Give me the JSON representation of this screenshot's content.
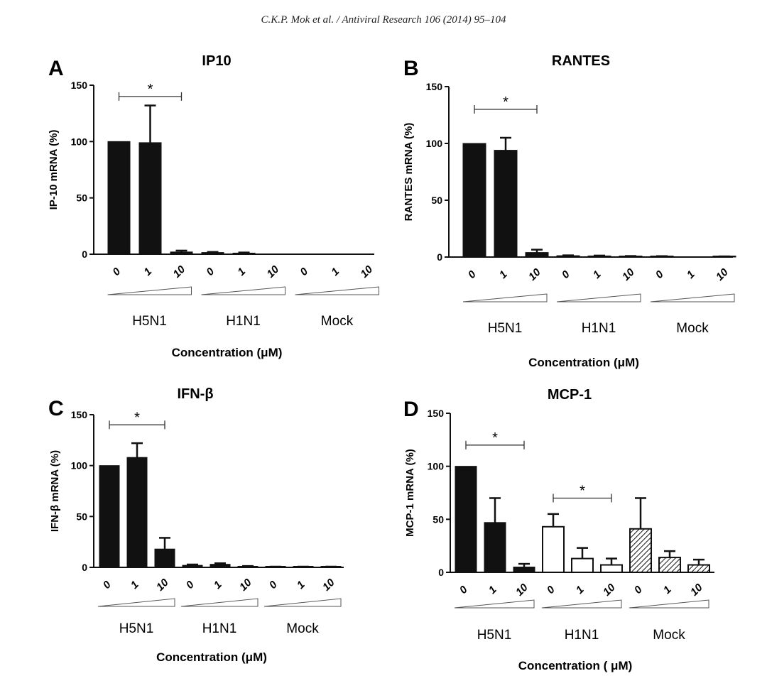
{
  "header": "C.K.P. Mok et al. / Antiviral Research 106 (2014) 95–104",
  "chart_data": [
    {
      "type": "bar",
      "letter": "A",
      "title": "IP10",
      "ylabel": "IP-10 mRNA (%)",
      "xlabel": "Concentration (μM)",
      "ylim": [
        0,
        150
      ],
      "yticks": [
        0,
        50,
        100,
        150
      ],
      "categories": [
        "0",
        "1",
        "10",
        "0",
        "1",
        "10",
        "0",
        "1",
        "10"
      ],
      "groups": [
        "H5N1",
        "H1N1",
        "Mock"
      ],
      "values": [
        100,
        99,
        2,
        1.5,
        1,
        0,
        0,
        0,
        0
      ],
      "errors": [
        0,
        33,
        1.2,
        0.5,
        0.5,
        0,
        0,
        0,
        0
      ],
      "fills": [
        "solid",
        "solid",
        "solid",
        "solid",
        "solid",
        "solid",
        "solid",
        "solid",
        "solid"
      ],
      "significance": [
        {
          "from": 0,
          "to": 2,
          "label": "*"
        }
      ]
    },
    {
      "type": "bar",
      "letter": "B",
      "title": "RANTES",
      "ylabel": "RANTES mRNA (%)",
      "xlabel": "Concentration (μM)",
      "ylim": [
        0,
        150
      ],
      "yticks": [
        0,
        50,
        100,
        150
      ],
      "categories": [
        "0",
        "1",
        "10",
        "0",
        "1",
        "10",
        "0",
        "1",
        "10"
      ],
      "groups": [
        "H5N1",
        "H1N1",
        "Mock"
      ],
      "values": [
        100,
        94,
        4,
        1.2,
        1,
        0.6,
        0.5,
        0,
        0.3
      ],
      "errors": [
        0,
        11,
        2.5,
        0.3,
        0.3,
        0.3,
        0.3,
        0,
        0.3
      ],
      "fills": [
        "solid",
        "solid",
        "solid",
        "solid",
        "solid",
        "solid",
        "solid",
        "solid",
        "solid"
      ],
      "significance": [
        {
          "from": 0,
          "to": 2,
          "label": "*"
        }
      ]
    },
    {
      "type": "bar",
      "letter": "C",
      "title": "IFN-β",
      "ylabel": "IFN-β mRNA (%)",
      "xlabel": "Concentration (μM)",
      "ylim": [
        0,
        150
      ],
      "yticks": [
        0,
        50,
        100,
        150
      ],
      "categories": [
        "0",
        "1",
        "10",
        "0",
        "1",
        "10",
        "0",
        "1",
        "10"
      ],
      "groups": [
        "H5N1",
        "H1N1",
        "Mock"
      ],
      "values": [
        100,
        108,
        18,
        2,
        3,
        1,
        0.5,
        0.5,
        0.5
      ],
      "errors": [
        0,
        14,
        11,
        0.8,
        1,
        0.3,
        0.2,
        0.2,
        0.2
      ],
      "fills": [
        "solid",
        "solid",
        "solid",
        "solid",
        "solid",
        "solid",
        "solid",
        "solid",
        "solid"
      ],
      "significance": [
        {
          "from": 0,
          "to": 2,
          "label": "*"
        }
      ]
    },
    {
      "type": "bar",
      "letter": "D",
      "title": "MCP-1",
      "ylabel": "MCP-1 mRNA (%)",
      "xlabel": "Concentration ( μM)",
      "ylim": [
        0,
        150
      ],
      "yticks": [
        0,
        50,
        100,
        150
      ],
      "categories": [
        "0",
        "1",
        "10",
        "0",
        "1",
        "10",
        "0",
        "1",
        "10"
      ],
      "groups": [
        "H5N1",
        "H1N1",
        "Mock"
      ],
      "values": [
        100,
        47,
        5,
        43,
        13,
        7,
        41,
        14,
        7
      ],
      "errors": [
        0,
        23,
        3,
        12,
        10,
        6,
        29,
        6,
        5
      ],
      "fills": [
        "solid",
        "solid",
        "solid",
        "open",
        "open",
        "open",
        "hatch",
        "hatch",
        "hatch"
      ],
      "significance": [
        {
          "from": 0,
          "to": 2,
          "label": "*"
        },
        {
          "from": 3,
          "to": 5,
          "label": "*"
        }
      ]
    }
  ]
}
